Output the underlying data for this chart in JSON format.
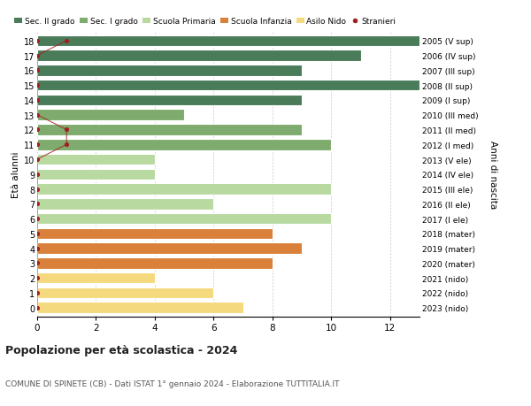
{
  "ages": [
    18,
    17,
    16,
    15,
    14,
    13,
    12,
    11,
    10,
    9,
    8,
    7,
    6,
    5,
    4,
    3,
    2,
    1,
    0
  ],
  "years": [
    "2005 (V sup)",
    "2006 (IV sup)",
    "2007 (III sup)",
    "2008 (II sup)",
    "2009 (I sup)",
    "2010 (III med)",
    "2011 (II med)",
    "2012 (I med)",
    "2013 (V ele)",
    "2014 (IV ele)",
    "2015 (III ele)",
    "2016 (II ele)",
    "2017 (I ele)",
    "2018 (mater)",
    "2019 (mater)",
    "2020 (mater)",
    "2021 (nido)",
    "2022 (nido)",
    "2023 (nido)"
  ],
  "values": [
    13,
    11,
    9,
    13,
    9,
    5,
    9,
    10,
    4,
    4,
    10,
    6,
    10,
    8,
    9,
    8,
    4,
    6,
    7
  ],
  "stranieri": [
    1,
    0,
    0,
    0,
    0,
    0,
    1,
    1,
    0,
    0,
    0,
    0,
    0,
    0,
    0,
    0,
    0,
    0,
    0
  ],
  "bar_colors": [
    "#4a7c59",
    "#4a7c59",
    "#4a7c59",
    "#4a7c59",
    "#4a7c59",
    "#7fac6e",
    "#7fac6e",
    "#7fac6e",
    "#b8d9a0",
    "#b8d9a0",
    "#b8d9a0",
    "#b8d9a0",
    "#b8d9a0",
    "#d9813a",
    "#d9813a",
    "#d9813a",
    "#f5d97e",
    "#f5d97e",
    "#f5d97e"
  ],
  "legend_labels": [
    "Sec. II grado",
    "Sec. I grado",
    "Scuola Primaria",
    "Scuola Infanzia",
    "Asilo Nido",
    "Stranieri"
  ],
  "legend_colors": [
    "#4a7c59",
    "#7fac6e",
    "#b8d9a0",
    "#d9813a",
    "#f5d97e",
    "#a02020"
  ],
  "stranieri_color": "#a02020",
  "title": "Popolazione per età scolastica - 2024",
  "subtitle": "COMUNE DI SPINETE (CB) - Dati ISTAT 1° gennaio 2024 - Elaborazione TUTTITALIA.IT",
  "ylabel": "Età alunni",
  "ylabel_right": "Anni di nascita",
  "xlim": [
    0,
    13
  ],
  "xticks": [
    0,
    2,
    4,
    6,
    8,
    10,
    12
  ],
  "bar_height": 0.75,
  "background_color": "#ffffff",
  "grid_color": "#cccccc"
}
